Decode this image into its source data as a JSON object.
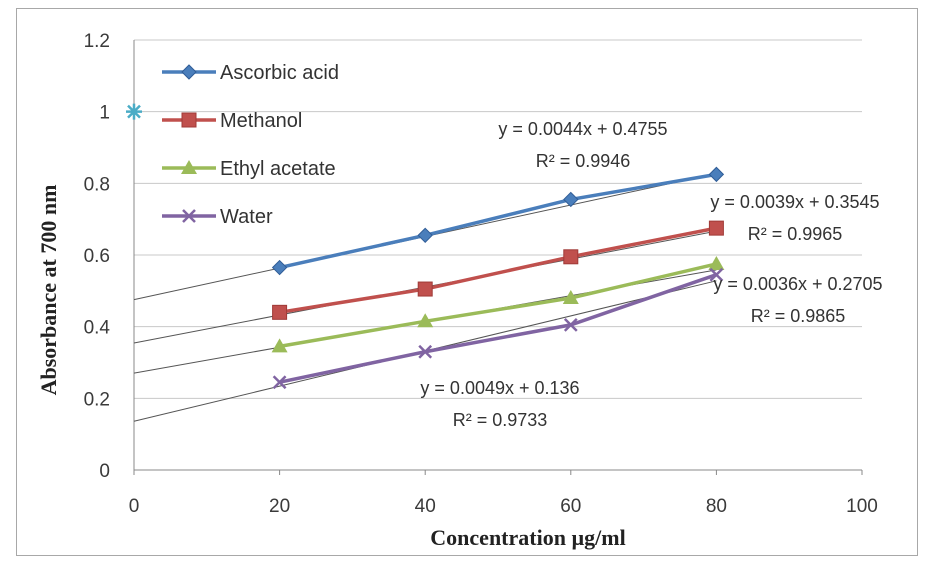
{
  "chart_data": {
    "type": "line",
    "xlabel": "Concentration µg/ml",
    "ylabel": "Absorbance at 700 nm",
    "xlim": [
      0,
      100
    ],
    "ylim": [
      0,
      1.2
    ],
    "x_ticks": [
      "0",
      "20",
      "40",
      "60",
      "80",
      "100"
    ],
    "y_ticks": [
      "0",
      "0.2",
      "0.4",
      "0.6",
      "0.8",
      "1",
      "1.2"
    ],
    "grid": "horizontal",
    "legend_position": "top-left inside",
    "x": [
      20,
      40,
      60,
      80
    ],
    "series": [
      {
        "name": "Ascorbic acid",
        "values": [
          0.565,
          0.655,
          0.755,
          0.825
        ],
        "color": "#4a7ebb",
        "marker": "diamond",
        "trendline": {
          "slope": 0.0044,
          "intercept": 0.4755,
          "equation": "y = 0.0044x + 0.4755",
          "r2": "R² = 0.9946"
        }
      },
      {
        "name": "Methanol",
        "values": [
          0.44,
          0.505,
          0.595,
          0.675
        ],
        "color": "#c0504d",
        "marker": "square",
        "trendline": {
          "slope": 0.0039,
          "intercept": 0.3545,
          "equation": "y = 0.0039x + 0.3545",
          "r2": "R² = 0.9965"
        }
      },
      {
        "name": "Ethyl acetate",
        "values": [
          0.345,
          0.415,
          0.48,
          0.575
        ],
        "color": "#9bbb59",
        "marker": "triangle",
        "trendline": {
          "slope": 0.0036,
          "intercept": 0.2705,
          "equation": "y = 0.0036x + 0.2705",
          "r2": "R² = 0.9865"
        }
      },
      {
        "name": "Water",
        "values": [
          0.245,
          0.33,
          0.405,
          0.545
        ],
        "color": "#8064a2",
        "marker": "x",
        "trendline": {
          "slope": 0.0049,
          "intercept": 0.136,
          "equation": "y = 0.0049x + 0.136",
          "r2": "R² = 0.9733"
        }
      }
    ],
    "extra_points": [
      {
        "x": 0,
        "y": 1.0,
        "marker": "asterisk",
        "color": "#4bacc6"
      }
    ]
  }
}
